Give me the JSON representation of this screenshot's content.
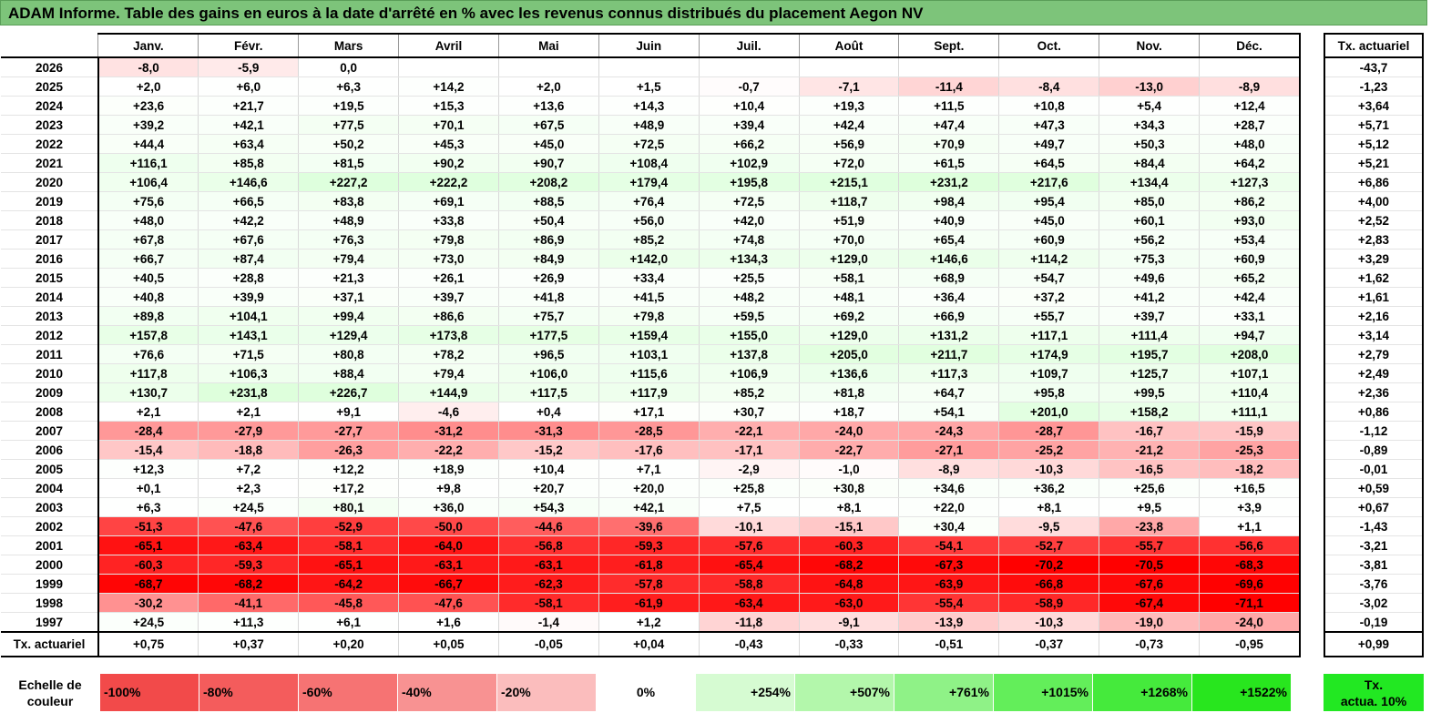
{
  "title": "ADAM Informe. Table des gains en euros à la date d'arrêté en % avec les revenus connus distribués du placement Aegon NV",
  "months": [
    "Janv.",
    "Févr.",
    "Mars",
    "Avril",
    "Mai",
    "Juin",
    "Juil.",
    "Août",
    "Sept.",
    "Oct.",
    "Nov.",
    "Déc."
  ],
  "side_header": "Tx. actuariel",
  "footer_label": "Tx. actuariel",
  "rows": [
    {
      "year": "2026",
      "values": [
        "-8,0",
        "-5,9",
        "0,0",
        "",
        "",
        "",
        "",
        "",
        "",
        "",
        "",
        ""
      ],
      "rate": "-43,7"
    },
    {
      "year": "2025",
      "values": [
        "+2,0",
        "+6,0",
        "+6,3",
        "+14,2",
        "+2,0",
        "+1,5",
        "-0,7",
        "-7,1",
        "-11,4",
        "-8,4",
        "-13,0",
        "-8,9"
      ],
      "rate": "-1,23"
    },
    {
      "year": "2024",
      "values": [
        "+23,6",
        "+21,7",
        "+19,5",
        "+15,3",
        "+13,6",
        "+14,3",
        "+10,4",
        "+19,3",
        "+11,5",
        "+10,8",
        "+5,4",
        "+12,4"
      ],
      "rate": "+3,64"
    },
    {
      "year": "2023",
      "values": [
        "+39,2",
        "+42,1",
        "+77,5",
        "+70,1",
        "+67,5",
        "+48,9",
        "+39,4",
        "+42,4",
        "+47,4",
        "+47,3",
        "+34,3",
        "+28,7"
      ],
      "rate": "+5,71"
    },
    {
      "year": "2022",
      "values": [
        "+44,4",
        "+63,4",
        "+50,2",
        "+45,3",
        "+45,0",
        "+72,5",
        "+66,2",
        "+56,9",
        "+70,9",
        "+49,7",
        "+50,3",
        "+48,0"
      ],
      "rate": "+5,12"
    },
    {
      "year": "2021",
      "values": [
        "+116,1",
        "+85,8",
        "+81,5",
        "+90,2",
        "+90,7",
        "+108,4",
        "+102,9",
        "+72,0",
        "+61,5",
        "+64,5",
        "+84,4",
        "+64,2"
      ],
      "rate": "+5,21"
    },
    {
      "year": "2020",
      "values": [
        "+106,4",
        "+146,6",
        "+227,2",
        "+222,2",
        "+208,2",
        "+179,4",
        "+195,8",
        "+215,1",
        "+231,2",
        "+217,6",
        "+134,4",
        "+127,3"
      ],
      "rate": "+6,86"
    },
    {
      "year": "2019",
      "values": [
        "+75,6",
        "+66,5",
        "+83,8",
        "+69,1",
        "+88,5",
        "+76,4",
        "+72,5",
        "+118,7",
        "+98,4",
        "+95,4",
        "+85,0",
        "+86,2"
      ],
      "rate": "+4,00"
    },
    {
      "year": "2018",
      "values": [
        "+48,0",
        "+42,2",
        "+48,9",
        "+33,8",
        "+50,4",
        "+56,0",
        "+42,0",
        "+51,9",
        "+40,9",
        "+45,0",
        "+60,1",
        "+93,0"
      ],
      "rate": "+2,52"
    },
    {
      "year": "2017",
      "values": [
        "+67,8",
        "+67,6",
        "+76,3",
        "+79,8",
        "+86,9",
        "+85,2",
        "+74,8",
        "+70,0",
        "+65,4",
        "+60,9",
        "+56,2",
        "+53,4"
      ],
      "rate": "+2,83"
    },
    {
      "year": "2016",
      "values": [
        "+66,7",
        "+87,4",
        "+79,4",
        "+73,0",
        "+84,9",
        "+142,0",
        "+134,3",
        "+129,0",
        "+146,6",
        "+114,2",
        "+75,3",
        "+60,9"
      ],
      "rate": "+3,29"
    },
    {
      "year": "2015",
      "values": [
        "+40,5",
        "+28,8",
        "+21,3",
        "+26,1",
        "+26,9",
        "+33,4",
        "+25,5",
        "+58,1",
        "+68,9",
        "+54,7",
        "+49,6",
        "+65,2"
      ],
      "rate": "+1,62"
    },
    {
      "year": "2014",
      "values": [
        "+40,8",
        "+39,9",
        "+37,1",
        "+39,7",
        "+41,8",
        "+41,5",
        "+48,2",
        "+48,1",
        "+36,4",
        "+37,2",
        "+41,2",
        "+42,4"
      ],
      "rate": "+1,61"
    },
    {
      "year": "2013",
      "values": [
        "+89,8",
        "+104,1",
        "+99,4",
        "+86,6",
        "+75,7",
        "+79,8",
        "+59,5",
        "+69,2",
        "+66,9",
        "+55,7",
        "+39,7",
        "+33,1"
      ],
      "rate": "+2,16"
    },
    {
      "year": "2012",
      "values": [
        "+157,8",
        "+143,1",
        "+129,4",
        "+173,8",
        "+177,5",
        "+159,4",
        "+155,0",
        "+129,0",
        "+131,2",
        "+117,1",
        "+111,4",
        "+94,7"
      ],
      "rate": "+3,14"
    },
    {
      "year": "2011",
      "values": [
        "+76,6",
        "+71,5",
        "+80,8",
        "+78,2",
        "+96,5",
        "+103,1",
        "+137,8",
        "+205,0",
        "+211,7",
        "+174,9",
        "+195,7",
        "+208,0"
      ],
      "rate": "+2,79"
    },
    {
      "year": "2010",
      "values": [
        "+117,8",
        "+106,3",
        "+88,4",
        "+79,4",
        "+106,0",
        "+115,6",
        "+106,9",
        "+136,6",
        "+117,3",
        "+109,7",
        "+125,7",
        "+107,1"
      ],
      "rate": "+2,49"
    },
    {
      "year": "2009",
      "values": [
        "+130,7",
        "+231,8",
        "+226,7",
        "+144,9",
        "+117,5",
        "+117,9",
        "+85,2",
        "+81,8",
        "+64,7",
        "+95,8",
        "+99,5",
        "+110,4"
      ],
      "rate": "+2,36"
    },
    {
      "year": "2008",
      "values": [
        "+2,1",
        "+2,1",
        "+9,1",
        "-4,6",
        "+0,4",
        "+17,1",
        "+30,7",
        "+18,7",
        "+54,1",
        "+201,0",
        "+158,2",
        "+111,1"
      ],
      "rate": "+0,86"
    },
    {
      "year": "2007",
      "values": [
        "-28,4",
        "-27,9",
        "-27,7",
        "-31,2",
        "-31,3",
        "-28,5",
        "-22,1",
        "-24,0",
        "-24,3",
        "-28,7",
        "-16,7",
        "-15,9"
      ],
      "rate": "-1,12"
    },
    {
      "year": "2006",
      "values": [
        "-15,4",
        "-18,8",
        "-26,3",
        "-22,2",
        "-15,2",
        "-17,6",
        "-17,1",
        "-22,7",
        "-27,1",
        "-25,2",
        "-21,2",
        "-25,3"
      ],
      "rate": "-0,89"
    },
    {
      "year": "2005",
      "values": [
        "+12,3",
        "+7,2",
        "+12,2",
        "+18,9",
        "+10,4",
        "+7,1",
        "-2,9",
        "-1,0",
        "-8,9",
        "-10,3",
        "-16,5",
        "-18,2"
      ],
      "rate": "-0,01"
    },
    {
      "year": "2004",
      "values": [
        "+0,1",
        "+2,3",
        "+17,2",
        "+9,8",
        "+20,7",
        "+20,0",
        "+25,8",
        "+30,8",
        "+34,6",
        "+36,2",
        "+25,6",
        "+16,5"
      ],
      "rate": "+0,59"
    },
    {
      "year": "2003",
      "values": [
        "+6,3",
        "+24,5",
        "+80,1",
        "+36,0",
        "+54,3",
        "+42,1",
        "+7,5",
        "+8,1",
        "+22,0",
        "+8,1",
        "+9,5",
        "+3,9"
      ],
      "rate": "+0,67"
    },
    {
      "year": "2002",
      "values": [
        "-51,3",
        "-47,6",
        "-52,9",
        "-50,0",
        "-44,6",
        "-39,6",
        "-10,1",
        "-15,1",
        "+30,4",
        "-9,5",
        "-23,8",
        "+1,1"
      ],
      "rate": "-1,43"
    },
    {
      "year": "2001",
      "values": [
        "-65,1",
        "-63,4",
        "-58,1",
        "-64,0",
        "-56,8",
        "-59,3",
        "-57,6",
        "-60,3",
        "-54,1",
        "-52,7",
        "-55,7",
        "-56,6"
      ],
      "rate": "-3,21"
    },
    {
      "year": "2000",
      "values": [
        "-60,3",
        "-59,3",
        "-65,1",
        "-63,1",
        "-63,1",
        "-61,8",
        "-65,4",
        "-68,2",
        "-67,3",
        "-70,2",
        "-70,5",
        "-68,3"
      ],
      "rate": "-3,81"
    },
    {
      "year": "1999",
      "values": [
        "-68,7",
        "-68,2",
        "-64,2",
        "-66,7",
        "-62,3",
        "-57,8",
        "-58,8",
        "-64,8",
        "-63,9",
        "-66,8",
        "-67,6",
        "-69,6"
      ],
      "rate": "-3,76"
    },
    {
      "year": "1998",
      "values": [
        "-30,2",
        "-41,1",
        "-45,8",
        "-47,6",
        "-58,1",
        "-61,9",
        "-63,4",
        "-63,0",
        "-55,4",
        "-58,9",
        "-67,4",
        "-71,1"
      ],
      "rate": "-3,02"
    },
    {
      "year": "1997",
      "values": [
        "+24,5",
        "+11,3",
        "+6,1",
        "+1,6",
        "-1,4",
        "+1,2",
        "-11,8",
        "-9,1",
        "-13,9",
        "-10,3",
        "-19,0",
        "-24,0"
      ],
      "rate": "-0,19"
    }
  ],
  "footer_values": [
    "+0,75",
    "+0,37",
    "+0,20",
    "+0,05",
    "-0,05",
    "+0,04",
    "-0,43",
    "-0,33",
    "-0,51",
    "-0,37",
    "-0,73",
    "-0,95"
  ],
  "footer_rate": "+0,99",
  "legend": {
    "label_line1": "Echelle de",
    "label_line2": "couleur",
    "cells": [
      {
        "text": "-100%",
        "color": "#f24a4a",
        "align": "neg"
      },
      {
        "text": "-80%",
        "color": "#f45c5c",
        "align": "neg"
      },
      {
        "text": "-60%",
        "color": "#f67373",
        "align": "neg"
      },
      {
        "text": "-40%",
        "color": "#f89292",
        "align": "neg"
      },
      {
        "text": "-20%",
        "color": "#fbbdbd",
        "align": "neg"
      },
      {
        "text": "0%",
        "color": "#ffffff",
        "align": "zero"
      },
      {
        "text": "+254%",
        "color": "#d6fbd2",
        "align": "pos"
      },
      {
        "text": "+507%",
        "color": "#b3f7ab",
        "align": "pos"
      },
      {
        "text": "+761%",
        "color": "#8ff287",
        "align": "pos"
      },
      {
        "text": "+1015%",
        "color": "#63ee5a",
        "align": "pos"
      },
      {
        "text": "+1268%",
        "color": "#45ea3c",
        "align": "pos"
      },
      {
        "text": "+1522%",
        "color": "#28e61e",
        "align": "pos"
      }
    ],
    "right_line1": "Tx.",
    "right_line2": "actua. 10%"
  }
}
